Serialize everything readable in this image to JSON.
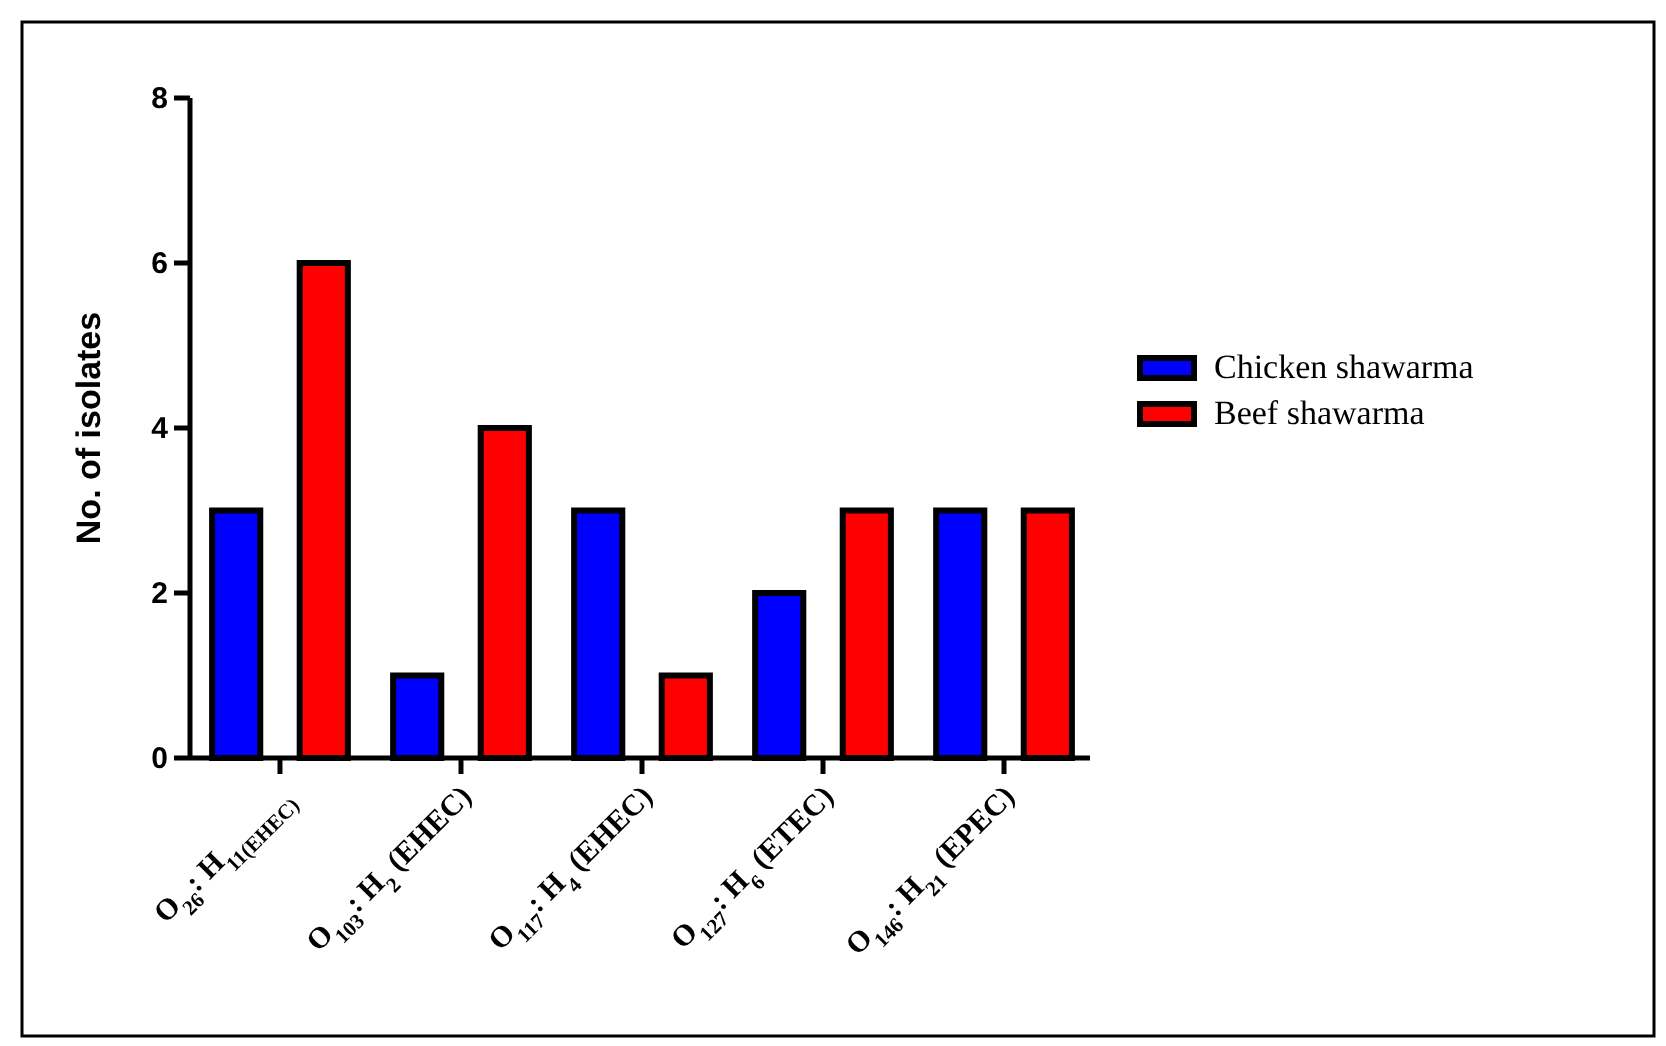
{
  "chart_data": {
    "type": "bar",
    "ylabel": "No. of isolates",
    "categories": [
      "O$_{26}$: H$_{11(EHEC)}$",
      "O$_{103}$: H$_{2}$ (EHEC)",
      "O$_{117}$: H$_{4}$ (EHEC)",
      "O$_{127}$: H$_{6}$ (ETEC)",
      "O$_{146}$: H$_{21}$ (EPEC)"
    ],
    "series": [
      {
        "name": "Chicken shawarma",
        "color": "#0000ff",
        "values": [
          3,
          1,
          3,
          2,
          3
        ]
      },
      {
        "name": "Beef shawarma",
        "color": "#ff0000",
        "values": [
          6,
          4,
          1,
          3,
          3
        ]
      }
    ],
    "ylim": [
      0,
      8
    ],
    "yticks": [
      0,
      2,
      4,
      6,
      8
    ],
    "grid": false,
    "legend": "right"
  }
}
